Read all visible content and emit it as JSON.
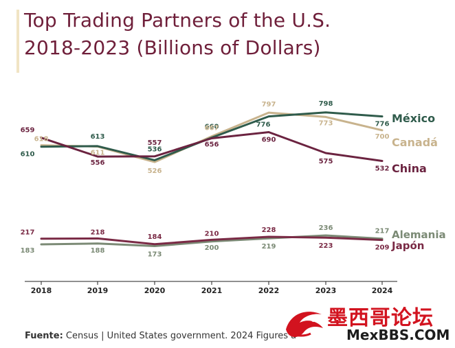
{
  "title_line1": "Top Trading Partners of the U.S.",
  "title_line2": "2018-2023 (Billions of Dollars)",
  "footer": {
    "label": "Fuente:",
    "text": " Census | United States government. 2024 Figures a"
  },
  "watermark": {
    "text_cn": "墨西哥论坛",
    "text_en": "MexBBS.COM"
  },
  "colors": {
    "mexico": "#2f5b4b",
    "canada": "#c8b38d",
    "china": "#6b2340",
    "alemania": "#7b8a75",
    "japon": "#7a2a45",
    "title": "#6f1f3a",
    "axis": "#222222"
  },
  "chart_data": {
    "type": "line",
    "x": [
      "2018",
      "2019",
      "2020",
      "2021",
      "2022",
      "2023",
      "2024"
    ],
    "series": [
      {
        "name": "México",
        "values": [
          610,
          613,
          536,
          660,
          776,
          798,
          776
        ],
        "labels": [
          "610",
          "613",
          "536",
          "660",
          "776",
          "798",
          "776"
        ],
        "color": "#2f5b4b"
      },
      {
        "name": "Canadá",
        "values": [
          618,
          611,
          526,
          667,
          797,
          773,
          700
        ],
        "labels": [
          "618",
          "611",
          "526",
          "667",
          "797",
          "773",
          "700"
        ],
        "color": "#c8b38d"
      },
      {
        "name": "China",
        "values": [
          659,
          556,
          557,
          656,
          690,
          575,
          532
        ],
        "labels": [
          "659",
          "556",
          "557",
          "656",
          "690",
          "575",
          "532"
        ],
        "color": "#6b2340"
      },
      {
        "name": "Alemania",
        "values": [
          183,
          188,
          173,
          200,
          219,
          236,
          217
        ],
        "labels": [
          "183",
          "188",
          "173",
          "200",
          "219",
          "236",
          "217"
        ],
        "color": "#7b8a75"
      },
      {
        "name": "Japón",
        "values": [
          217,
          218,
          184,
          210,
          228,
          223,
          209
        ],
        "labels": [
          "217",
          "218",
          "184",
          "210",
          "228",
          "223",
          "209"
        ],
        "color": "#7a2a45"
      }
    ]
  }
}
